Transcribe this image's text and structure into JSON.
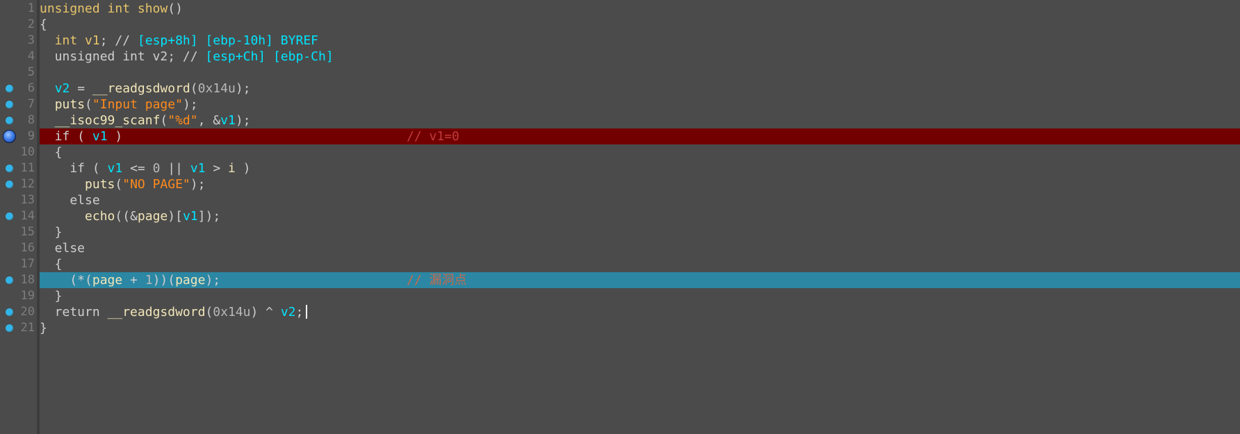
{
  "editor": {
    "lines": [
      {
        "num": "1",
        "bp": false,
        "hl": "",
        "tokens": [
          {
            "t": "unsigned int show",
            "c": "kw"
          },
          {
            "t": "()",
            "c": "gray"
          }
        ]
      },
      {
        "num": "2",
        "bp": false,
        "hl": "",
        "tokens": [
          {
            "t": "{",
            "c": "gray"
          }
        ]
      },
      {
        "num": "3",
        "bp": false,
        "hl": "",
        "tokens": [
          {
            "t": "  int ",
            "c": "kw"
          },
          {
            "t": "v1",
            "c": "kw"
          },
          {
            "t": "; // ",
            "c": "gray"
          },
          {
            "t": "[esp+8h] [ebp-10h] BYREF",
            "c": "id"
          }
        ]
      },
      {
        "num": "4",
        "bp": false,
        "hl": "",
        "tokens": [
          {
            "t": "  unsigned int v2; // ",
            "c": "gray"
          },
          {
            "t": "[esp+Ch] [ebp-Ch]",
            "c": "id"
          }
        ]
      },
      {
        "num": "5",
        "bp": false,
        "hl": "",
        "tokens": []
      },
      {
        "num": "6",
        "bp": true,
        "hl": "",
        "tokens": [
          {
            "t": "  ",
            "c": "gray"
          },
          {
            "t": "v2",
            "c": "id"
          },
          {
            "t": " = ",
            "c": "gray"
          },
          {
            "t": "__readgsdword",
            "c": "fn"
          },
          {
            "t": "(",
            "c": "gray"
          },
          {
            "t": "0x14u",
            "c": "num"
          },
          {
            "t": ");",
            "c": "gray"
          }
        ]
      },
      {
        "num": "7",
        "bp": true,
        "hl": "",
        "tokens": [
          {
            "t": "  ",
            "c": "gray"
          },
          {
            "t": "puts",
            "c": "fn"
          },
          {
            "t": "(",
            "c": "gray"
          },
          {
            "t": "\"Input page\"",
            "c": "str"
          },
          {
            "t": ");",
            "c": "gray"
          }
        ]
      },
      {
        "num": "8",
        "bp": true,
        "hl": "",
        "tokens": [
          {
            "t": "  ",
            "c": "gray"
          },
          {
            "t": "__isoc99_scanf",
            "c": "fn"
          },
          {
            "t": "(",
            "c": "gray"
          },
          {
            "t": "\"%d\"",
            "c": "str"
          },
          {
            "t": ", &",
            "c": "gray"
          },
          {
            "t": "v1",
            "c": "id"
          },
          {
            "t": ");",
            "c": "gray"
          }
        ]
      },
      {
        "num": "9",
        "bp": true,
        "current": true,
        "hl": "red",
        "tokens": [
          {
            "t": "  if ( ",
            "c": "gray"
          },
          {
            "t": "v1",
            "c": "id"
          },
          {
            "t": " )",
            "c": "gray"
          }
        ],
        "comment": {
          "t": "// v1=0",
          "c": "cm-red"
        }
      },
      {
        "num": "10",
        "bp": false,
        "hl": "",
        "tokens": [
          {
            "t": "  {",
            "c": "gray"
          }
        ]
      },
      {
        "num": "11",
        "bp": true,
        "hl": "",
        "tokens": [
          {
            "t": "    if ( ",
            "c": "gray"
          },
          {
            "t": "v1",
            "c": "id"
          },
          {
            "t": " <= ",
            "c": "gray"
          },
          {
            "t": "0",
            "c": "num"
          },
          {
            "t": " || ",
            "c": "gray"
          },
          {
            "t": "v1",
            "c": "id"
          },
          {
            "t": " > ",
            "c": "gray"
          },
          {
            "t": "i",
            "c": "fn"
          },
          {
            "t": " )",
            "c": "gray"
          }
        ]
      },
      {
        "num": "12",
        "bp": true,
        "hl": "",
        "tokens": [
          {
            "t": "      ",
            "c": "gray"
          },
          {
            "t": "puts",
            "c": "fn"
          },
          {
            "t": "(",
            "c": "gray"
          },
          {
            "t": "\"NO PAGE\"",
            "c": "str"
          },
          {
            "t": ");",
            "c": "gray"
          }
        ]
      },
      {
        "num": "13",
        "bp": false,
        "hl": "",
        "tokens": [
          {
            "t": "    else",
            "c": "gray"
          }
        ]
      },
      {
        "num": "14",
        "bp": true,
        "hl": "",
        "tokens": [
          {
            "t": "      ",
            "c": "gray"
          },
          {
            "t": "echo",
            "c": "fn"
          },
          {
            "t": "((&",
            "c": "gray"
          },
          {
            "t": "page",
            "c": "fn"
          },
          {
            "t": ")[",
            "c": "gray"
          },
          {
            "t": "v1",
            "c": "id"
          },
          {
            "t": "]);",
            "c": "gray"
          }
        ]
      },
      {
        "num": "15",
        "bp": false,
        "hl": "",
        "tokens": [
          {
            "t": "  }",
            "c": "gray"
          }
        ]
      },
      {
        "num": "16",
        "bp": false,
        "hl": "",
        "tokens": [
          {
            "t": "  else",
            "c": "gray"
          }
        ]
      },
      {
        "num": "17",
        "bp": false,
        "hl": "",
        "tokens": [
          {
            "t": "  {",
            "c": "gray"
          }
        ]
      },
      {
        "num": "18",
        "bp": true,
        "hl": "blue",
        "tokens": [
          {
            "t": "    (*(",
            "c": "gray"
          },
          {
            "t": "page",
            "c": "fn"
          },
          {
            "t": " + ",
            "c": "gray"
          },
          {
            "t": "1",
            "c": "num"
          },
          {
            "t": "))(",
            "c": "gray"
          },
          {
            "t": "page",
            "c": "fn"
          },
          {
            "t": ");",
            "c": "gray"
          }
        ],
        "comment": {
          "t": "// 漏洞点",
          "c": "cm-orange"
        }
      },
      {
        "num": "19",
        "bp": false,
        "hl": "",
        "tokens": [
          {
            "t": "  }",
            "c": "gray"
          }
        ]
      },
      {
        "num": "20",
        "bp": true,
        "hl": "",
        "cursor": true,
        "tokens": [
          {
            "t": "  return ",
            "c": "gray"
          },
          {
            "t": "__readgsdword",
            "c": "fn"
          },
          {
            "t": "(",
            "c": "gray"
          },
          {
            "t": "0x14u",
            "c": "num"
          },
          {
            "t": ") ^ ",
            "c": "gray"
          },
          {
            "t": "v2",
            "c": "id"
          },
          {
            "t": ";",
            "c": "gray"
          }
        ]
      },
      {
        "num": "21",
        "bp": true,
        "hl": "",
        "tokens": [
          {
            "t": "}",
            "c": "gray"
          }
        ]
      }
    ]
  }
}
